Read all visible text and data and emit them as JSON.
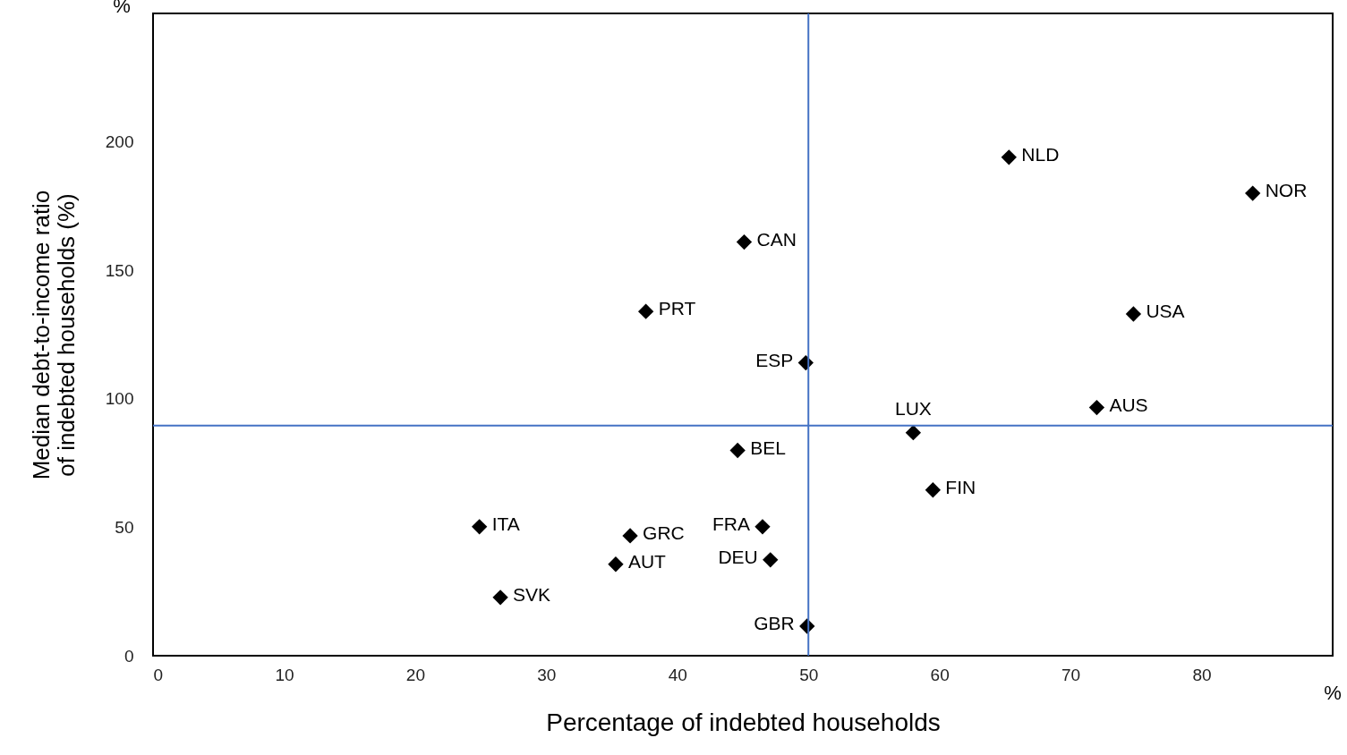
{
  "chart_data": {
    "type": "scatter",
    "xlabel": "Percentage of indebted households",
    "ylabel": "Median debt-to-income ratio of indebted households (%)",
    "xlim": [
      0,
      90
    ],
    "xticks": [
      0,
      10,
      20,
      30,
      40,
      50,
      60,
      70,
      80
    ],
    "ylim": [
      0,
      250
    ],
    "yticks": [
      0,
      50,
      100,
      150,
      200
    ],
    "grid": false,
    "marker": "diamond",
    "series": [
      {
        "color": "#000000",
        "x": [
          65.3,
          83.9,
          45.1,
          37.6,
          74.8,
          49.8,
          72.0,
          58.0,
          44.6,
          59.5,
          24.9,
          36.4,
          46.5,
          47.1,
          35.3,
          26.5,
          49.9
        ],
        "values": [
          194,
          180,
          161,
          134,
          133,
          114,
          96.6,
          86.8,
          79.9,
          64.5,
          50.2,
          46.7,
          50.2,
          37.3,
          35.6,
          22.7,
          11.5
        ],
        "value_labels": [
          "NLD",
          "NOR",
          "CAN",
          "PRT",
          "USA",
          "ESP",
          "AUS",
          "LUX",
          "BEL",
          "FIN",
          "ITA",
          "GRC",
          "FRA",
          "DEU",
          "AUT",
          "SVK",
          "GBR"
        ]
      }
    ],
    "ref_lines": [
      {
        "axis": "x",
        "value": 50,
        "color": "#4472c4"
      },
      {
        "axis": "y",
        "value": 89.6,
        "color": "#4472c4"
      }
    ],
    "annotations": [
      "%",
      "%"
    ]
  }
}
